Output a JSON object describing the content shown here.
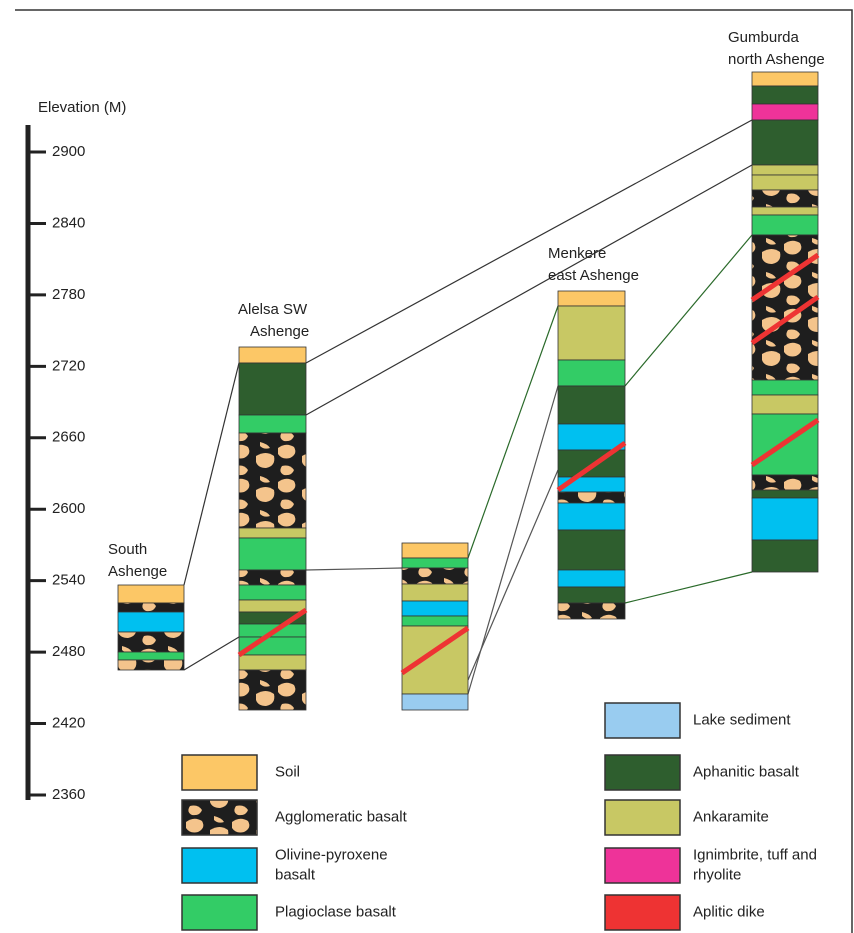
{
  "axis": {
    "label": "Elevation (M)",
    "ticks": [
      2900,
      2840,
      2780,
      2720,
      2660,
      2600,
      2540,
      2480,
      2420,
      2360
    ]
  },
  "columns": [
    {
      "label": [
        "South",
        "Ashenge"
      ]
    },
    {
      "label": [
        "Alelsa SW",
        "Ashenge"
      ]
    },
    {
      "label": [
        "Menkere",
        "east Ashenge"
      ]
    },
    {
      "label": [
        "Gumburda",
        "north Ashenge"
      ]
    }
  ],
  "legend": [
    {
      "label": [
        "Soil"
      ]
    },
    {
      "label": [
        "Agglomeratic basalt"
      ]
    },
    {
      "label": [
        "Olivine-pyroxene",
        "basalt"
      ]
    },
    {
      "label": [
        "Plagioclase basalt"
      ]
    },
    {
      "label": [
        "Lake sediment"
      ]
    },
    {
      "label": [
        "Aphanitic basalt"
      ]
    },
    {
      "label": [
        "Ankaramite"
      ]
    },
    {
      "label": [
        "Ignimbrite, tuff and",
        "rhyolite"
      ]
    },
    {
      "label": [
        "Aplitic dike"
      ]
    }
  ]
}
